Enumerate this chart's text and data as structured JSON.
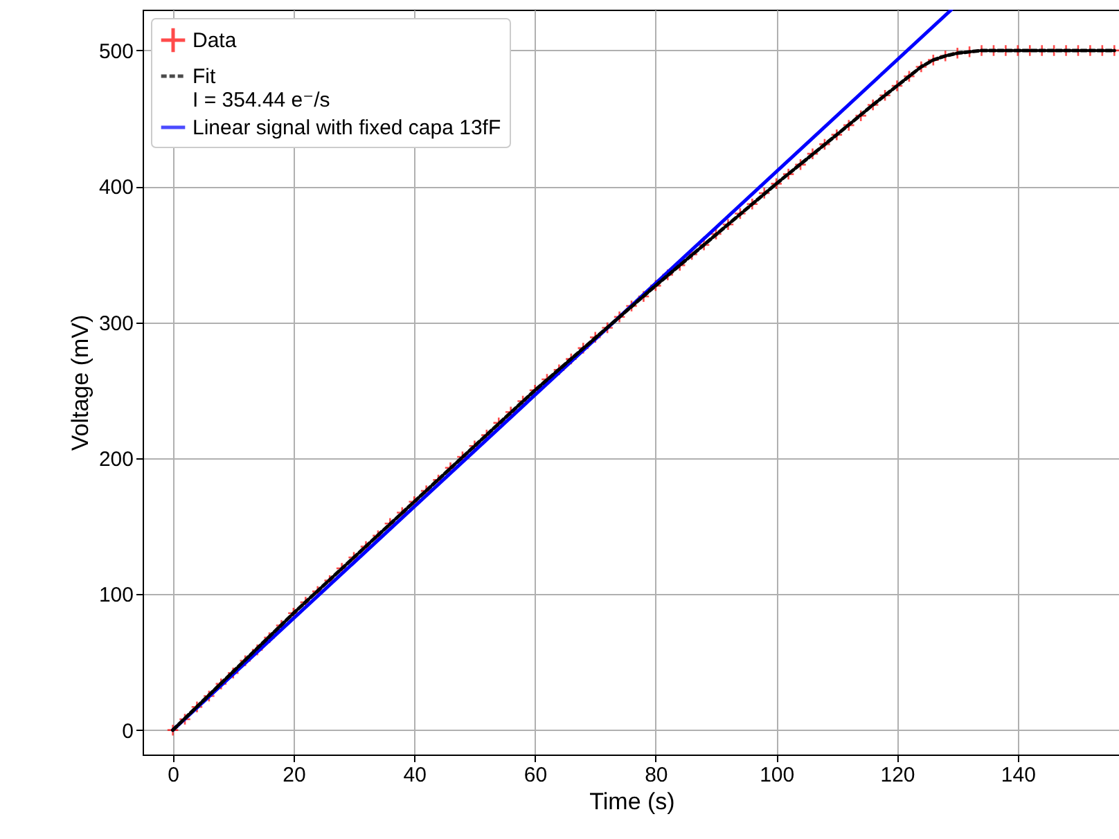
{
  "chart_data": {
    "type": "line",
    "xlabel": "Time (s)",
    "ylabel": "Voltage (mV)",
    "xlim": [
      -5,
      157
    ],
    "ylim": [
      -18,
      530
    ],
    "xticks": [
      0,
      20,
      40,
      60,
      80,
      100,
      120,
      140
    ],
    "yticks": [
      0,
      100,
      200,
      300,
      400,
      500
    ],
    "grid": true,
    "legend": "top left",
    "series": [
      {
        "name": "Data",
        "type": "scatter",
        "marker": "cross",
        "color": "#ff0000",
        "x": [
          0,
          2,
          4,
          6,
          8,
          10,
          12,
          14,
          16,
          18,
          20,
          22,
          24,
          26,
          28,
          30,
          32,
          34,
          36,
          38,
          40,
          42,
          44,
          46,
          48,
          50,
          52,
          54,
          56,
          58,
          60,
          62,
          64,
          66,
          68,
          70,
          72,
          74,
          76,
          78,
          80,
          82,
          84,
          86,
          88,
          90,
          92,
          94,
          96,
          98,
          100,
          102,
          104,
          106,
          108,
          110,
          112,
          114,
          116,
          118,
          120,
          122,
          124,
          126,
          128,
          130,
          132,
          134,
          136,
          138,
          140,
          142,
          144,
          146,
          148,
          150,
          152,
          154,
          156
        ],
        "values": [
          0,
          8,
          17,
          25,
          34,
          42,
          51,
          59,
          68,
          77,
          86,
          94,
          102,
          110,
          119,
          127,
          135,
          143,
          152,
          160,
          168,
          176,
          184,
          193,
          201,
          209,
          217,
          226,
          234,
          242,
          250,
          258,
          265,
          273,
          281,
          289,
          296,
          304,
          312,
          319,
          327,
          335,
          342,
          350,
          357,
          365,
          372,
          380,
          387,
          395,
          402,
          409,
          416,
          424,
          431,
          438,
          445,
          452,
          460,
          467,
          474,
          481,
          488,
          493,
          496,
          498,
          499,
          500,
          500,
          500,
          500,
          500,
          500,
          500,
          500,
          500,
          500,
          500,
          500
        ]
      },
      {
        "name": "Fit\n I = 354.44 e⁻/s",
        "line_style": "dashed",
        "color": "#000000",
        "x": [
          0,
          20,
          40,
          60,
          80,
          100,
          110,
          116,
          120,
          124,
          126,
          128,
          130,
          132,
          134,
          136,
          156
        ],
        "values": [
          0,
          86,
          168,
          250,
          327,
          402,
          438,
          460,
          474,
          488,
          493,
          496,
          498,
          499,
          500,
          500,
          500
        ]
      },
      {
        "name": "Linear signal with fixed capa 13fF",
        "line_style": "solid",
        "color": "#0000ff",
        "x": [
          0,
          129
        ],
        "values": [
          0,
          530
        ]
      }
    ]
  }
}
